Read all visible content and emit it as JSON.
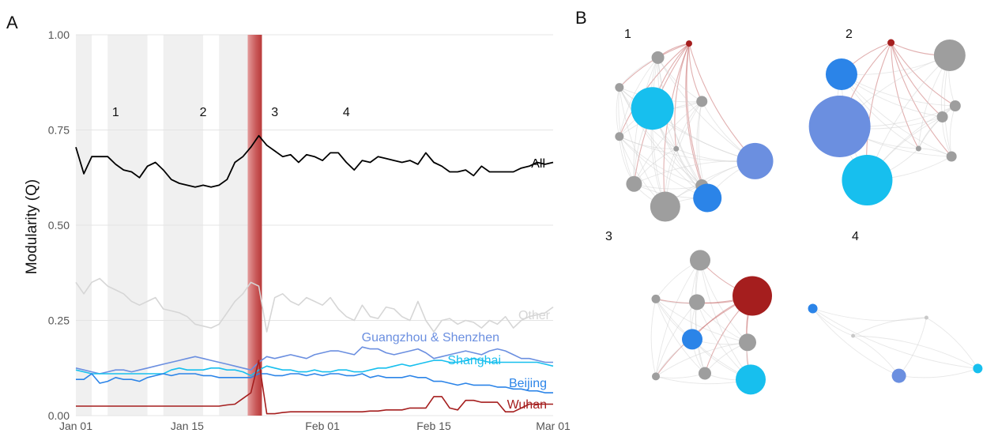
{
  "panels": {
    "a_label": "A",
    "b_label": "B"
  },
  "chart_data": [
    {
      "type": "line",
      "panel": "A",
      "ylabel": "Modularity (Q)",
      "xlabel": "",
      "ylim": [
        0,
        1
      ],
      "yticks": [
        "0.00",
        "0.25",
        "0.50",
        "0.75",
        "1.00"
      ],
      "xlim": [
        1,
        61
      ],
      "xticks": [
        {
          "label": "Jan 01",
          "day": 1
        },
        {
          "label": "Jan 15",
          "day": 15
        },
        {
          "label": "Feb 01",
          "day": 32
        },
        {
          "label": "Feb 15",
          "day": 46
        },
        {
          "label": "Mar 01",
          "day": 61
        }
      ],
      "grid": true,
      "shaded_periods": [
        [
          1,
          3
        ],
        [
          5,
          10
        ],
        [
          12,
          17
        ],
        [
          19,
          23
        ]
      ],
      "lockdown_day": 23,
      "period_labels": [
        {
          "label": "1",
          "day": 6
        },
        {
          "label": "2",
          "day": 17
        },
        {
          "label": "3",
          "day": 26
        },
        {
          "label": "4",
          "day": 35
        }
      ],
      "series": [
        {
          "name": "All",
          "color": "#000000",
          "values": [
            0.705,
            0.635,
            0.68,
            0.68,
            0.68,
            0.66,
            0.645,
            0.64,
            0.625,
            0.655,
            0.665,
            0.645,
            0.62,
            0.61,
            0.605,
            0.6,
            0.605,
            0.6,
            0.605,
            0.62,
            0.665,
            0.68,
            0.705,
            0.735,
            0.71,
            0.695,
            0.68,
            0.685,
            0.665,
            0.685,
            0.68,
            0.67,
            0.69,
            0.69,
            0.665,
            0.645,
            0.67,
            0.665,
            0.68,
            0.675,
            0.67,
            0.665,
            0.67,
            0.66,
            0.69,
            0.665,
            0.655,
            0.64,
            0.64,
            0.645,
            0.63,
            0.655,
            0.64,
            0.64,
            0.64,
            0.64,
            0.65,
            0.655,
            0.665,
            0.66,
            0.665
          ]
        },
        {
          "name": "Other",
          "color": "#d6d6d6",
          "values": [
            0.35,
            0.32,
            0.35,
            0.36,
            0.34,
            0.33,
            0.32,
            0.3,
            0.29,
            0.3,
            0.31,
            0.28,
            0.275,
            0.27,
            0.26,
            0.24,
            0.235,
            0.23,
            0.24,
            0.27,
            0.3,
            0.32,
            0.35,
            0.34,
            0.22,
            0.31,
            0.32,
            0.3,
            0.29,
            0.31,
            0.3,
            0.29,
            0.31,
            0.28,
            0.26,
            0.25,
            0.29,
            0.26,
            0.255,
            0.285,
            0.28,
            0.26,
            0.25,
            0.3,
            0.25,
            0.22,
            0.25,
            0.255,
            0.24,
            0.25,
            0.245,
            0.23,
            0.25,
            0.24,
            0.26,
            0.23,
            0.25,
            0.26,
            0.265,
            0.27,
            0.285
          ]
        },
        {
          "name": "Guangzhou & Shenzhen",
          "color": "#6b8fe0",
          "values": [
            0.125,
            0.12,
            0.115,
            0.11,
            0.115,
            0.12,
            0.12,
            0.115,
            0.12,
            0.125,
            0.13,
            0.135,
            0.14,
            0.145,
            0.15,
            0.155,
            0.15,
            0.145,
            0.14,
            0.135,
            0.13,
            0.125,
            0.12,
            0.14,
            0.155,
            0.15,
            0.155,
            0.16,
            0.155,
            0.15,
            0.16,
            0.165,
            0.17,
            0.17,
            0.165,
            0.16,
            0.18,
            0.175,
            0.175,
            0.165,
            0.16,
            0.165,
            0.17,
            0.175,
            0.165,
            0.15,
            0.155,
            0.16,
            0.165,
            0.17,
            0.165,
            0.16,
            0.17,
            0.175,
            0.17,
            0.16,
            0.15,
            0.15,
            0.145,
            0.14,
            0.14
          ]
        },
        {
          "name": "Shanghai",
          "color": "#17bfee",
          "values": [
            0.12,
            0.115,
            0.11,
            0.11,
            0.11,
            0.11,
            0.11,
            0.11,
            0.11,
            0.11,
            0.11,
            0.11,
            0.12,
            0.125,
            0.12,
            0.12,
            0.12,
            0.125,
            0.125,
            0.12,
            0.12,
            0.115,
            0.105,
            0.12,
            0.13,
            0.125,
            0.12,
            0.12,
            0.115,
            0.115,
            0.12,
            0.115,
            0.115,
            0.12,
            0.12,
            0.115,
            0.115,
            0.12,
            0.125,
            0.125,
            0.13,
            0.135,
            0.13,
            0.135,
            0.14,
            0.145,
            0.145,
            0.14,
            0.14,
            0.145,
            0.15,
            0.145,
            0.14,
            0.14,
            0.14,
            0.14,
            0.14,
            0.14,
            0.14,
            0.135,
            0.13
          ]
        },
        {
          "name": "Beijing",
          "color": "#2b84e8",
          "values": [
            0.095,
            0.095,
            0.11,
            0.085,
            0.09,
            0.1,
            0.095,
            0.095,
            0.09,
            0.1,
            0.105,
            0.11,
            0.105,
            0.11,
            0.11,
            0.11,
            0.105,
            0.105,
            0.1,
            0.1,
            0.1,
            0.1,
            0.1,
            0.11,
            0.11,
            0.105,
            0.105,
            0.11,
            0.11,
            0.105,
            0.11,
            0.105,
            0.11,
            0.11,
            0.105,
            0.105,
            0.11,
            0.1,
            0.105,
            0.1,
            0.1,
            0.1,
            0.105,
            0.1,
            0.1,
            0.09,
            0.09,
            0.085,
            0.08,
            0.085,
            0.08,
            0.08,
            0.08,
            0.075,
            0.075,
            0.07,
            0.07,
            0.065,
            0.065,
            0.06,
            0.06
          ]
        },
        {
          "name": "Wuhan",
          "color": "#a51e1e",
          "values": [
            0.025,
            0.025,
            0.025,
            0.025,
            0.025,
            0.025,
            0.025,
            0.025,
            0.025,
            0.025,
            0.025,
            0.025,
            0.025,
            0.025,
            0.025,
            0.025,
            0.025,
            0.025,
            0.025,
            0.028,
            0.03,
            0.045,
            0.06,
            0.145,
            0.005,
            0.005,
            0.008,
            0.01,
            0.01,
            0.01,
            0.01,
            0.01,
            0.01,
            0.01,
            0.01,
            0.01,
            0.01,
            0.012,
            0.012,
            0.015,
            0.015,
            0.015,
            0.02,
            0.02,
            0.02,
            0.05,
            0.05,
            0.02,
            0.015,
            0.04,
            0.04,
            0.035,
            0.035,
            0.035,
            0.01,
            0.01,
            0.02,
            0.03,
            0.03,
            0.03,
            0.03
          ]
        }
      ]
    },
    {
      "type": "network",
      "panel": "B",
      "subpanels": [
        {
          "label": "1",
          "nodes": [
            {
              "x": 0.5,
              "y": 0.05,
              "size": 8,
              "color": "#a51e1e"
            },
            {
              "x": 0.33,
              "y": 0.13,
              "size": 16,
              "color": "#9e9e9e"
            },
            {
              "x": 0.12,
              "y": 0.3,
              "size": 11,
              "color": "#9e9e9e"
            },
            {
              "x": 0.3,
              "y": 0.42,
              "size": 54,
              "color": "#17bfee"
            },
            {
              "x": 0.57,
              "y": 0.38,
              "size": 14,
              "color": "#9e9e9e"
            },
            {
              "x": 0.12,
              "y": 0.58,
              "size": 11,
              "color": "#9e9e9e"
            },
            {
              "x": 0.43,
              "y": 0.65,
              "size": 7,
              "color": "#9e9e9e"
            },
            {
              "x": 0.86,
              "y": 0.72,
              "size": 46,
              "color": "#6b8fe0"
            },
            {
              "x": 0.2,
              "y": 0.85,
              "size": 20,
              "color": "#9e9e9e"
            },
            {
              "x": 0.57,
              "y": 0.86,
              "size": 16,
              "color": "#9e9e9e"
            },
            {
              "x": 0.6,
              "y": 0.93,
              "size": 36,
              "color": "#2b84e8"
            },
            {
              "x": 0.37,
              "y": 0.98,
              "size": 38,
              "color": "#9e9e9e"
            }
          ]
        },
        {
          "label": "2",
          "nodes": [
            {
              "x": 0.55,
              "y": 0.05,
              "size": 9,
              "color": "#a51e1e"
            },
            {
              "x": 0.28,
              "y": 0.25,
              "size": 40,
              "color": "#2b84e8"
            },
            {
              "x": 0.87,
              "y": 0.13,
              "size": 40,
              "color": "#9e9e9e"
            },
            {
              "x": 0.27,
              "y": 0.58,
              "size": 78,
              "color": "#6b8fe0"
            },
            {
              "x": 0.9,
              "y": 0.45,
              "size": 14,
              "color": "#9e9e9e"
            },
            {
              "x": 0.83,
              "y": 0.52,
              "size": 14,
              "color": "#9e9e9e"
            },
            {
              "x": 0.42,
              "y": 0.92,
              "size": 64,
              "color": "#17bfee"
            },
            {
              "x": 0.88,
              "y": 0.77,
              "size": 13,
              "color": "#9e9e9e"
            },
            {
              "x": 0.7,
              "y": 0.72,
              "size": 7,
              "color": "#9e9e9e"
            }
          ]
        },
        {
          "label": "3",
          "nodes": [
            {
              "x": 0.5,
              "y": 0.15,
              "size": 26,
              "color": "#9e9e9e"
            },
            {
              "x": 0.22,
              "y": 0.4,
              "size": 11,
              "color": "#9e9e9e"
            },
            {
              "x": 0.48,
              "y": 0.42,
              "size": 20,
              "color": "#9e9e9e"
            },
            {
              "x": 0.83,
              "y": 0.38,
              "size": 50,
              "color": "#a51e1e"
            },
            {
              "x": 0.45,
              "y": 0.66,
              "size": 26,
              "color": "#2b84e8"
            },
            {
              "x": 0.8,
              "y": 0.68,
              "size": 22,
              "color": "#9e9e9e"
            },
            {
              "x": 0.22,
              "y": 0.9,
              "size": 10,
              "color": "#9e9e9e"
            },
            {
              "x": 0.53,
              "y": 0.88,
              "size": 16,
              "color": "#9e9e9e"
            },
            {
              "x": 0.82,
              "y": 0.92,
              "size": 38,
              "color": "#17bfee"
            }
          ]
        },
        {
          "label": "4",
          "nodes": [
            {
              "x": 0.08,
              "y": 0.35,
              "size": 12,
              "color": "#2b84e8"
            },
            {
              "x": 0.55,
              "y": 0.72,
              "size": 18,
              "color": "#6b8fe0"
            },
            {
              "x": 0.98,
              "y": 0.68,
              "size": 12,
              "color": "#17bfee"
            },
            {
              "x": 0.7,
              "y": 0.4,
              "size": 5,
              "color": "#c8c8c8"
            },
            {
              "x": 0.3,
              "y": 0.5,
              "size": 5,
              "color": "#c8c8c8"
            }
          ]
        }
      ]
    }
  ]
}
